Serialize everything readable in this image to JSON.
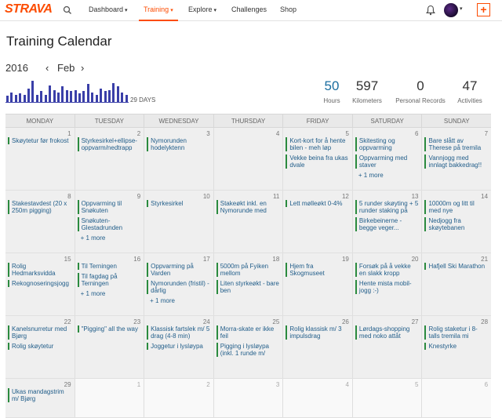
{
  "nav": {
    "logo": "STRAVA",
    "items": [
      {
        "label": "Dashboard",
        "caret": "▾"
      },
      {
        "label": "Training",
        "caret": "▾"
      },
      {
        "label": "Explore",
        "caret": "▾"
      },
      {
        "label": "Challenges"
      },
      {
        "label": "Shop"
      }
    ],
    "active": "Training",
    "plus": "+"
  },
  "title": "Training Calendar",
  "period": {
    "year": "2016",
    "prev": "‹",
    "month": "Feb",
    "next": "›"
  },
  "mini_chart": {
    "label": "29 DAYS",
    "color": "#3a3fa8",
    "daily_levels": [
      0.25,
      0.4,
      0.3,
      0.35,
      0.3,
      0.55,
      0.9,
      0.3,
      0.45,
      0.3,
      0.7,
      0.5,
      0.4,
      0.65,
      0.5,
      0.45,
      0.5,
      0.35,
      0.45,
      0.75,
      0.4,
      0.3,
      0.55,
      0.45,
      0.5,
      0.8,
      0.65,
      0.4,
      0.3
    ]
  },
  "stats": [
    {
      "value": "50",
      "label": "Hours",
      "highlight": true
    },
    {
      "value": "597",
      "label": "Kilometers",
      "highlight": false
    },
    {
      "value": "0",
      "label": "Personal Records",
      "highlight": false
    },
    {
      "value": "47",
      "label": "Activities",
      "highlight": false
    }
  ],
  "weekdays": [
    "MONDAY",
    "TUESDAY",
    "WEDNESDAY",
    "THURSDAY",
    "FRIDAY",
    "SATURDAY",
    "SUNDAY"
  ],
  "weeks": [
    [
      {
        "n": "1",
        "acts": [
          "Skøytetur før frokost"
        ]
      },
      {
        "n": "2",
        "acts": [
          "Styrkesirkel+ellipse-oppvarm/nedtrapp"
        ]
      },
      {
        "n": "3",
        "acts": [
          "Nymorunden hodelyktenn"
        ]
      },
      {
        "n": "4",
        "acts": []
      },
      {
        "n": "5",
        "acts": [
          "Kort-kort for å hente bilen - meh løp",
          "Vekke beina fra ukas dvale"
        ]
      },
      {
        "n": "6",
        "acts": [
          "Skitesting og oppvarming",
          "Oppvarming med staver"
        ],
        "more": "+ 1 more"
      },
      {
        "n": "7",
        "acts": [
          "Bare slått av Therese på tremila",
          "Vannjogg med innlagt bakkedrag!!"
        ]
      }
    ],
    [
      {
        "n": "8",
        "acts": [
          "Stakestavdest (20 x 250m pigging)"
        ]
      },
      {
        "n": "9",
        "acts": [
          "Oppvarming til Snøkuten",
          "Snøkuten-Glestadrunden"
        ],
        "more": "+ 1 more"
      },
      {
        "n": "10",
        "acts": [
          "Styrkesirkel"
        ]
      },
      {
        "n": "11",
        "acts": [
          "Stakeøkt inkl. en Nymorunde med"
        ]
      },
      {
        "n": "12",
        "acts": [
          "Lett mølleøkt 0-4%"
        ]
      },
      {
        "n": "13",
        "acts": [
          "5 runder skøyting + 5 runder staking på",
          "Birkebeinerne - begge veger..."
        ]
      },
      {
        "n": "14",
        "acts": [
          "10000m og litt til med nye",
          "Nedjogg fra skøytebanen"
        ]
      }
    ],
    [
      {
        "n": "15",
        "acts": [
          "Rolig Hedmarksvidda",
          "Rekognoseringsjogg"
        ]
      },
      {
        "n": "16",
        "acts": [
          "Til Terningen",
          "Til fagdag på Terningen"
        ],
        "more": "+ 1 more"
      },
      {
        "n": "17",
        "acts": [
          "Oppvarming på Varden",
          "Nymorunden (fristil) - dårlig"
        ],
        "more": "+ 1 more"
      },
      {
        "n": "18",
        "acts": [
          "5000m på Fyiken mellom",
          "Liten styrkeøkt - bare ben"
        ]
      },
      {
        "n": "19",
        "acts": [
          "Hjem fra Skogmuseet"
        ]
      },
      {
        "n": "20",
        "acts": [
          "Forsøk på å vekke en slakk kropp",
          "Hente mista mobil-jogg :-)"
        ]
      },
      {
        "n": "21",
        "acts": [
          "Hafjell Ski Marathon"
        ]
      }
    ],
    [
      {
        "n": "22",
        "acts": [
          "Kanelsnurretur med Bjørg",
          "Rolig skøytetur"
        ]
      },
      {
        "n": "23",
        "acts": [
          "\"Pigging\" all the way"
        ]
      },
      {
        "n": "24",
        "acts": [
          "Klassisk fartslek m/ 5 drag (4-8 min)",
          "Joggetur i lysløypa"
        ]
      },
      {
        "n": "25",
        "acts": [
          "Morra-skate er ikke feil",
          "Pigging i lysløypa (inkl. 1 runde m/"
        ]
      },
      {
        "n": "26",
        "acts": [
          "Rolig klassisk m/ 3 impulsdrag"
        ]
      },
      {
        "n": "27",
        "acts": [
          "Lørdags-shopping med noko attåt"
        ]
      },
      {
        "n": "28",
        "acts": [
          "Rolig staketur i 8-talls tremila mi",
          "Knestyrke"
        ]
      }
    ],
    [
      {
        "n": "29",
        "acts": [
          "Ukas mandagstrim m/ Bjørg"
        ]
      },
      {
        "n": "1",
        "acts": [],
        "out": true
      },
      {
        "n": "2",
        "acts": [],
        "out": true
      },
      {
        "n": "3",
        "acts": [],
        "out": true
      },
      {
        "n": "4",
        "acts": [],
        "out": true
      },
      {
        "n": "5",
        "acts": [],
        "out": true
      },
      {
        "n": "6",
        "acts": [],
        "out": true
      }
    ]
  ]
}
